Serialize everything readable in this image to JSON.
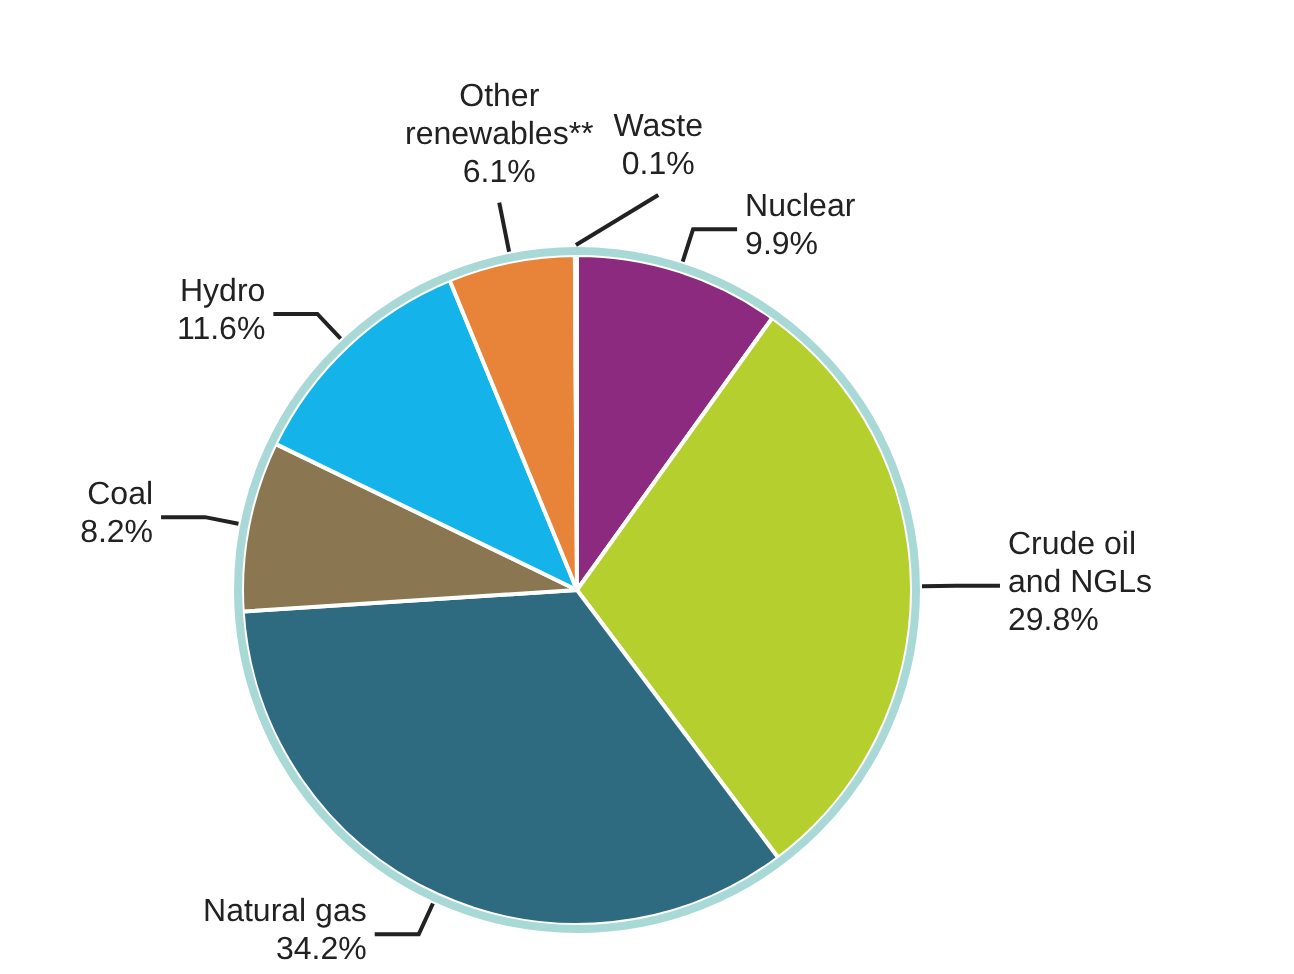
{
  "chart_data": {
    "type": "pie",
    "categories": [
      "Nuclear",
      "Crude oil and NGLs",
      "Natural gas",
      "Coal",
      "Hydro",
      "Other renewables**",
      "Waste"
    ],
    "values": [
      9.9,
      29.8,
      34.2,
      8.2,
      11.6,
      6.1,
      0.1
    ],
    "value_labels": [
      "9.9%",
      "29.8%",
      "34.2%",
      "8.2%",
      "11.6%",
      "6.1%",
      "0.1%"
    ],
    "colors": [
      "#8b2a7e",
      "#b5cf2e",
      "#2e6b80",
      "#8a7650",
      "#14b4ea",
      "#e8843a",
      "#b0b0b0"
    ],
    "legend": false
  }
}
